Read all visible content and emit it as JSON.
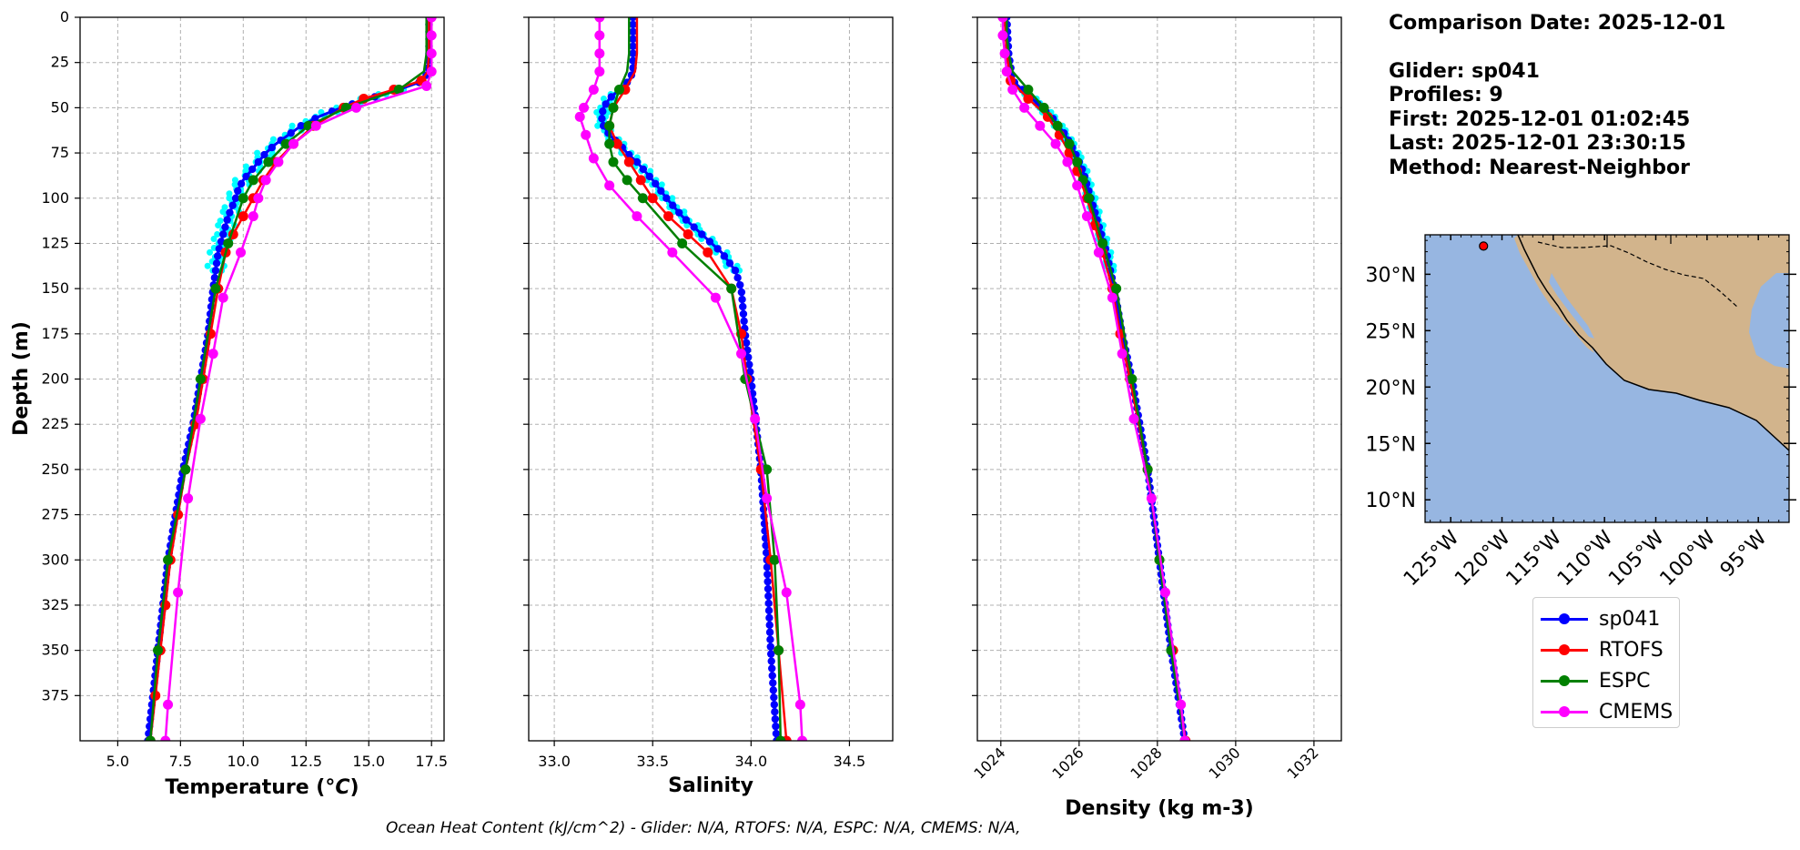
{
  "info": {
    "comparison_date": "Comparison Date: 2025-12-01",
    "glider": "Glider: sp041",
    "profiles": "Profiles: 9",
    "first": "First: 2025-12-01 01:02:45",
    "last": "Last: 2025-12-01 23:30:15",
    "method": "Method: Nearest-Neighbor"
  },
  "footer": "Ocean Heat Content (kJ/cm^2) - Glider: N/A,  RTOFS: N/A,  ESPC: N/A,  CMEMS: N/A,",
  "colors": {
    "sp041": "#0000ff",
    "sp041_scatter": "#00ffff",
    "RTOFS": "#ff0000",
    "ESPC": "#008000",
    "CMEMS": "#ff00ff",
    "ocean": "#97b6e1",
    "land": "#d2b48c"
  },
  "legend": [
    "sp041",
    "RTOFS",
    "ESPC",
    "CMEMS"
  ],
  "chart_data": [
    {
      "type": "line",
      "panel": "temperature",
      "xlabel": "Temperature (°C)",
      "ylabel": "Depth (m)",
      "xlim": [
        3.5,
        18.0
      ],
      "ylim": [
        400,
        0
      ],
      "xticks": [
        5.0,
        7.5,
        10.0,
        12.5,
        15.0,
        17.5
      ],
      "xtick_labels": [
        "5.0",
        "7.5",
        "10.0",
        "12.5",
        "15.0",
        "17.5"
      ],
      "yticks": [
        0,
        25,
        50,
        75,
        100,
        125,
        150,
        175,
        200,
        225,
        250,
        275,
        300,
        325,
        350,
        375
      ],
      "grid": true,
      "series": [
        {
          "name": "sp041",
          "style": "line-dense-markers",
          "depth": [
            0,
            10,
            20,
            30,
            35,
            40,
            45,
            50,
            55,
            60,
            65,
            70,
            75,
            80,
            85,
            90,
            95,
            100,
            110,
            120,
            130,
            140,
            150,
            175,
            200,
            225,
            250,
            275,
            300,
            325,
            350,
            375,
            400
          ],
          "values": [
            17.4,
            17.4,
            17.4,
            17.35,
            17.2,
            16.2,
            15.0,
            13.9,
            13.0,
            12.3,
            11.8,
            11.3,
            10.9,
            10.6,
            10.3,
            10.0,
            9.8,
            9.7,
            9.4,
            9.2,
            9.0,
            8.9,
            8.8,
            8.6,
            8.3,
            8.0,
            7.6,
            7.3,
            7.0,
            6.8,
            6.6,
            6.4,
            6.2
          ]
        },
        {
          "name": "RTOFS",
          "depth": [
            0,
            10,
            20,
            30,
            35,
            40,
            45,
            50,
            60,
            70,
            80,
            90,
            100,
            110,
            120,
            130,
            150,
            175,
            200,
            225,
            250,
            275,
            300,
            325,
            350,
            375,
            400
          ],
          "values": [
            17.4,
            17.4,
            17.4,
            17.35,
            17.1,
            16.0,
            14.8,
            14.0,
            12.8,
            12.0,
            11.3,
            10.8,
            10.4,
            10.0,
            9.6,
            9.3,
            9.0,
            8.7,
            8.4,
            8.1,
            7.7,
            7.4,
            7.1,
            6.9,
            6.7,
            6.5,
            6.3
          ]
        },
        {
          "name": "ESPC",
          "depth": [
            0,
            10,
            20,
            30,
            40,
            50,
            60,
            70,
            80,
            90,
            100,
            125,
            150,
            200,
            250,
            300,
            350,
            400
          ],
          "values": [
            17.3,
            17.3,
            17.3,
            17.2,
            16.2,
            14.1,
            12.6,
            11.7,
            11.0,
            10.4,
            10.0,
            9.4,
            8.9,
            8.3,
            7.7,
            7.0,
            6.6,
            6.3
          ]
        },
        {
          "name": "CMEMS",
          "depth": [
            0,
            10,
            20,
            30,
            38,
            50,
            60,
            70,
            80,
            90,
            100,
            110,
            130,
            155,
            186,
            222,
            266,
            318,
            380,
            400
          ],
          "values": [
            17.5,
            17.5,
            17.5,
            17.5,
            17.3,
            14.5,
            12.9,
            12.0,
            11.4,
            10.9,
            10.6,
            10.4,
            9.9,
            9.2,
            8.8,
            8.3,
            7.8,
            7.4,
            7.0,
            6.9
          ]
        }
      ]
    },
    {
      "type": "line",
      "panel": "salinity",
      "xlabel": "Salinity",
      "xlim": [
        32.87,
        34.72
      ],
      "ylim": [
        400,
        0
      ],
      "xticks": [
        33.0,
        33.5,
        34.0,
        34.5
      ],
      "xtick_labels": [
        "33.0",
        "33.5",
        "34.0",
        "34.5"
      ],
      "grid": true,
      "series": [
        {
          "name": "sp041",
          "style": "line-dense-markers",
          "depth": [
            0,
            10,
            20,
            30,
            35,
            40,
            45,
            50,
            55,
            60,
            65,
            70,
            75,
            80,
            90,
            100,
            110,
            120,
            130,
            140,
            150,
            175,
            200,
            250,
            300,
            350,
            400
          ],
          "values": [
            33.4,
            33.4,
            33.4,
            33.4,
            33.38,
            33.33,
            33.28,
            33.25,
            33.24,
            33.25,
            33.28,
            33.33,
            33.37,
            33.42,
            33.5,
            33.57,
            33.65,
            33.75,
            33.85,
            33.92,
            33.95,
            33.97,
            34.0,
            34.05,
            34.08,
            34.1,
            34.13
          ]
        },
        {
          "name": "RTOFS",
          "depth": [
            0,
            10,
            20,
            30,
            40,
            50,
            60,
            70,
            80,
            90,
            100,
            110,
            120,
            130,
            150,
            175,
            200,
            250,
            300,
            350,
            400
          ],
          "values": [
            33.42,
            33.42,
            33.42,
            33.41,
            33.36,
            33.3,
            33.28,
            33.32,
            33.38,
            33.44,
            33.5,
            33.58,
            33.68,
            33.78,
            33.9,
            33.95,
            33.98,
            34.05,
            34.1,
            34.14,
            34.18
          ]
        },
        {
          "name": "ESPC",
          "depth": [
            0,
            10,
            20,
            30,
            40,
            50,
            60,
            70,
            80,
            90,
            100,
            125,
            150,
            200,
            250,
            300,
            350,
            400
          ],
          "values": [
            33.38,
            33.38,
            33.38,
            33.37,
            33.33,
            33.3,
            33.28,
            33.28,
            33.3,
            33.37,
            33.45,
            33.65,
            33.9,
            33.97,
            34.08,
            34.12,
            34.14,
            34.15
          ]
        },
        {
          "name": "CMEMS",
          "depth": [
            0,
            10,
            20,
            30,
            40,
            50,
            55,
            65,
            78,
            93,
            110,
            130,
            155,
            186,
            222,
            266,
            318,
            380,
            400
          ],
          "values": [
            33.23,
            33.23,
            33.23,
            33.23,
            33.2,
            33.15,
            33.13,
            33.16,
            33.2,
            33.28,
            33.42,
            33.6,
            33.82,
            33.95,
            34.02,
            34.08,
            34.18,
            34.25,
            34.26
          ]
        }
      ]
    },
    {
      "type": "line",
      "panel": "density",
      "xlabel": "Density (kg m-3)",
      "xlim": [
        1023.4,
        1032.7
      ],
      "ylim": [
        400,
        0
      ],
      "xticks": [
        1024,
        1026,
        1028,
        1030,
        1032
      ],
      "xtick_labels": [
        "1024",
        "1026",
        "1028",
        "1030",
        "1032"
      ],
      "grid": true,
      "series": [
        {
          "name": "sp041",
          "style": "line-dense-markers",
          "depth": [
            0,
            20,
            35,
            45,
            55,
            65,
            75,
            85,
            100,
            115,
            130,
            150,
            175,
            200,
            250,
            300,
            350,
            400
          ],
          "values": [
            1024.15,
            1024.2,
            1024.3,
            1024.8,
            1025.3,
            1025.65,
            1025.9,
            1026.1,
            1026.3,
            1026.5,
            1026.7,
            1026.9,
            1027.1,
            1027.35,
            1027.75,
            1028.05,
            1028.35,
            1028.7
          ]
        },
        {
          "name": "RTOFS",
          "depth": [
            0,
            20,
            35,
            45,
            55,
            65,
            75,
            85,
            100,
            115,
            130,
            150,
            175,
            200,
            250,
            300,
            350,
            400
          ],
          "values": [
            1024.1,
            1024.15,
            1024.25,
            1024.7,
            1025.2,
            1025.5,
            1025.75,
            1025.95,
            1026.2,
            1026.4,
            1026.6,
            1026.85,
            1027.05,
            1027.3,
            1027.75,
            1028.05,
            1028.4,
            1028.72
          ]
        },
        {
          "name": "ESPC",
          "depth": [
            0,
            10,
            20,
            30,
            40,
            50,
            60,
            70,
            80,
            90,
            100,
            125,
            150,
            200,
            250,
            300,
            350,
            400
          ],
          "values": [
            1024.15,
            1024.15,
            1024.2,
            1024.3,
            1024.7,
            1025.1,
            1025.45,
            1025.75,
            1025.95,
            1026.1,
            1026.25,
            1026.6,
            1026.95,
            1027.35,
            1027.75,
            1028.05,
            1028.35,
            1028.7
          ]
        },
        {
          "name": "CMEMS",
          "depth": [
            0,
            10,
            20,
            30,
            40,
            50,
            60,
            70,
            80,
            93,
            110,
            130,
            155,
            186,
            222,
            266,
            318,
            380,
            400
          ],
          "values": [
            1024.05,
            1024.05,
            1024.1,
            1024.15,
            1024.3,
            1024.6,
            1025.0,
            1025.4,
            1025.7,
            1025.95,
            1026.2,
            1026.5,
            1026.85,
            1027.1,
            1027.4,
            1027.85,
            1028.2,
            1028.6,
            1028.7
          ]
        }
      ]
    },
    {
      "type": "map",
      "panel": "location",
      "lon_range": [
        -127.5,
        -92.0
      ],
      "lat_range": [
        8.0,
        33.5
      ],
      "lon_ticks": [
        -125,
        -120,
        -115,
        -110,
        -105,
        -100,
        -95
      ],
      "lon_tick_labels": [
        "125°W",
        "120°W",
        "115°W",
        "110°W",
        "105°W",
        "100°W",
        "95°W"
      ],
      "lat_ticks": [
        10,
        15,
        20,
        25,
        30
      ],
      "lat_tick_labels": [
        "10°N",
        "15°N",
        "20°N",
        "25°N",
        "30°N"
      ],
      "glider_position": {
        "lon": -121.8,
        "lat": 32.5
      }
    }
  ]
}
